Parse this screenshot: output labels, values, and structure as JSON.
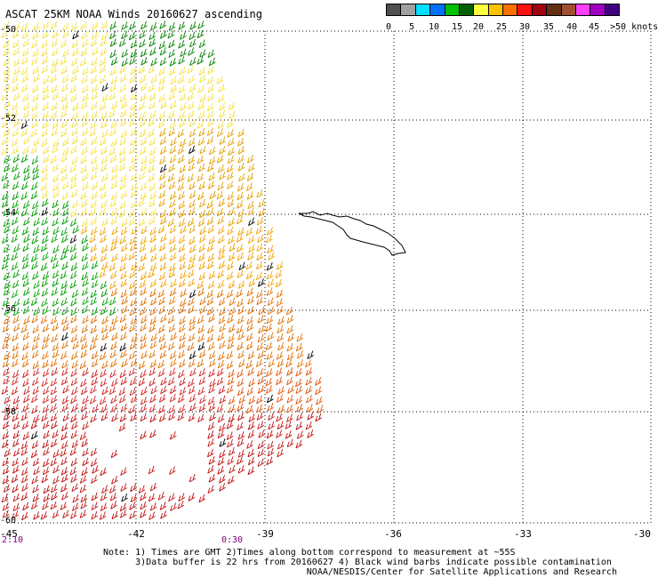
{
  "title": "ASCAT 25KM NOAA Winds 20160627 ascending",
  "legend": {
    "colors": [
      "#505050",
      "#a0a0a0",
      "#00e0ff",
      "#0070ff",
      "#00c000",
      "#006000",
      "#ffff40",
      "#ffc000",
      "#ff7000",
      "#ff1010",
      "#a00010",
      "#603010",
      "#a05030",
      "#ff40ff",
      "#a000c0",
      "#400080"
    ],
    "labels": [
      "0",
      "5",
      "10",
      "15",
      "20",
      "25",
      "30",
      "35",
      "40",
      "45",
      ">50 knots"
    ]
  },
  "lat_labels": [
    "-50",
    "-52",
    "-54",
    "-56",
    "-58",
    "-60"
  ],
  "lon_labels": [
    "-45",
    "-42",
    "-39",
    "-36",
    "-33",
    "-30"
  ],
  "times": [
    "2:10",
    "0:30"
  ],
  "notes": [
    "Note: 1) Times are GMT 2)Times along bottom correspond to measurement at ~55S",
    "      3)Data buffer is 22 hrs from 20160627 4) Black wind barbs indicate possible contamination",
    "                                      NOAA/NESDIS/Center for Satellite Applications and Research"
  ]
}
